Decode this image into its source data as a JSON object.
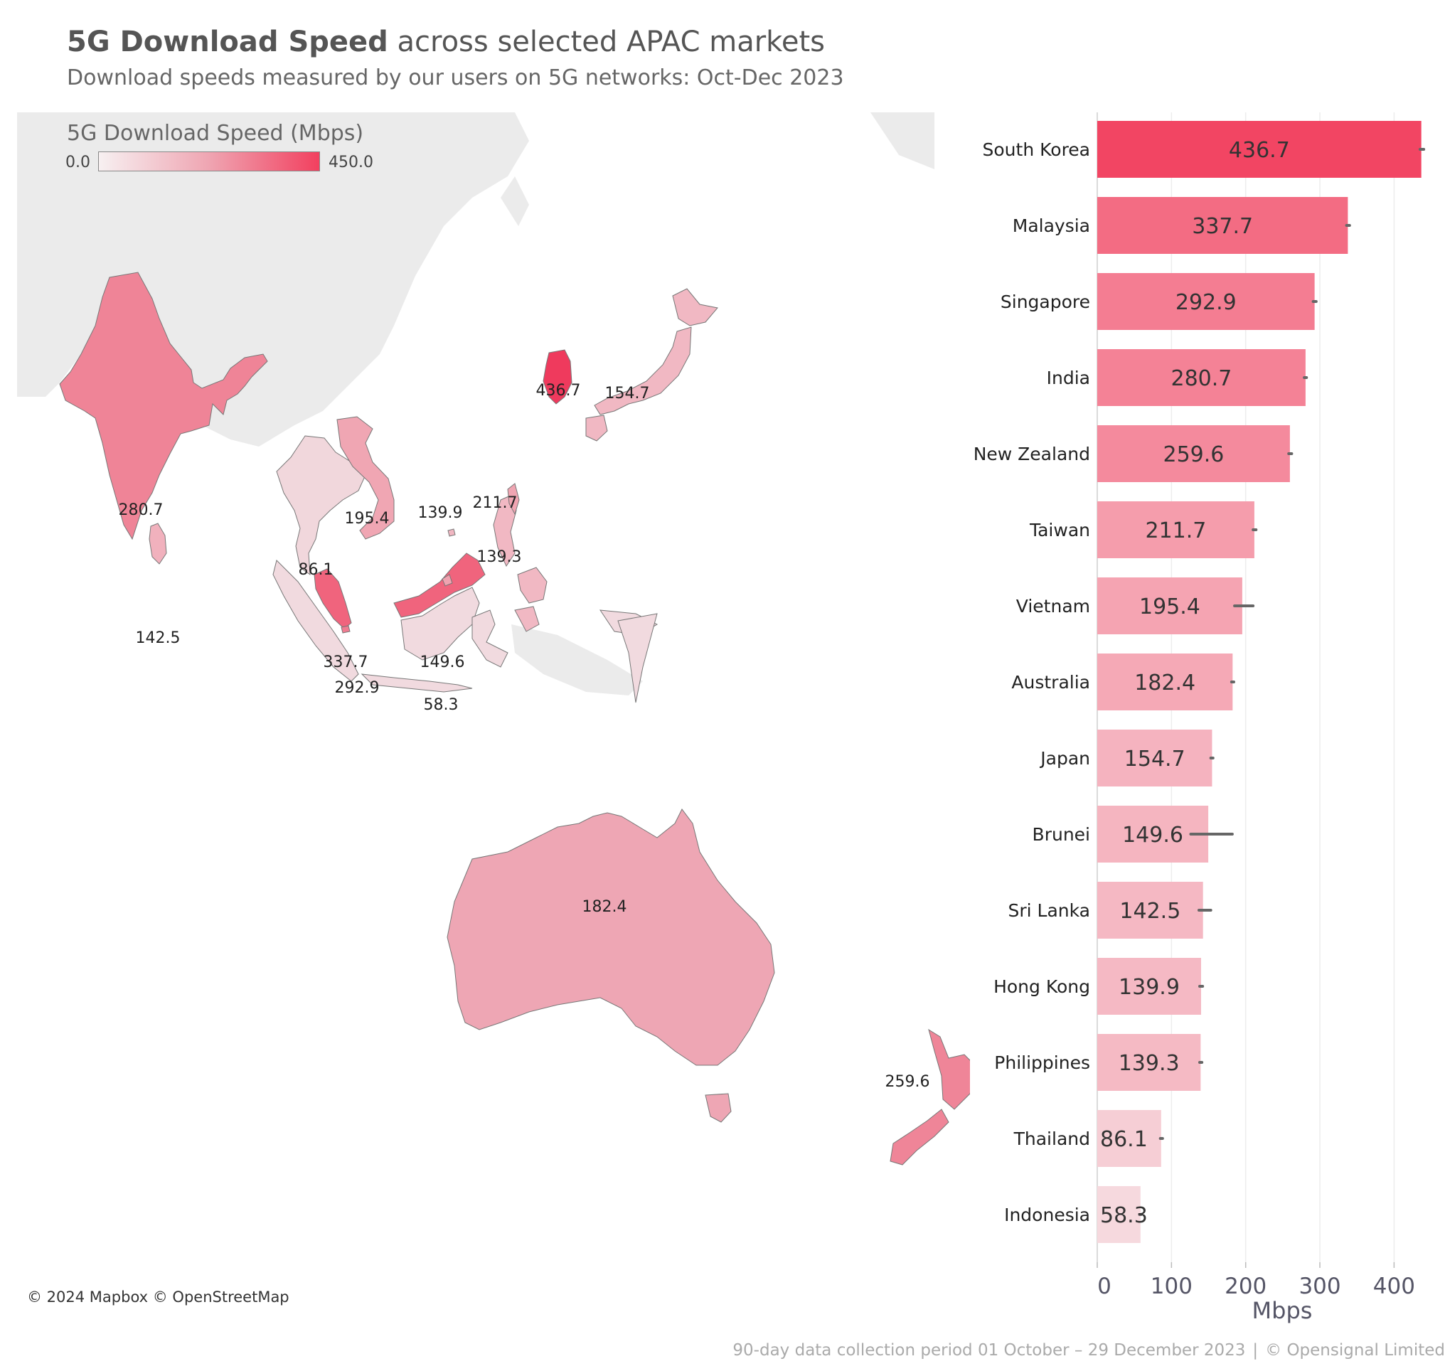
{
  "header": {
    "title_bold": "5G Download Speed",
    "title_rest": "across selected APAC markets",
    "subtitle": "Download speeds measured by our users on 5G networks: Oct-Dec 2023"
  },
  "legend": {
    "title": "5G Download Speed (Mbps)",
    "min_label": "0.0",
    "max_label": "450.0",
    "color_low": "#f7f0f1",
    "color_high": "#f2405f"
  },
  "map": {
    "attribution": "© 2024 Mapbox © OpenStreetMap",
    "labels": [
      {
        "country": "South Korea",
        "text": "436.7"
      },
      {
        "country": "Japan",
        "text": "154.7"
      },
      {
        "country": "India",
        "text": "280.7"
      },
      {
        "country": "Vietnam",
        "text": "195.4"
      },
      {
        "country": "Hong Kong",
        "text": "139.9"
      },
      {
        "country": "Taiwan",
        "text": "211.7"
      },
      {
        "country": "Philippines",
        "text": "139.3"
      },
      {
        "country": "Thailand",
        "text": "86.1"
      },
      {
        "country": "Sri Lanka",
        "text": "142.5"
      },
      {
        "country": "Malaysia",
        "text": "337.7"
      },
      {
        "country": "Brunei",
        "text": "149.6"
      },
      {
        "country": "Singapore",
        "text": "292.9"
      },
      {
        "country": "Indonesia",
        "text": "58.3"
      },
      {
        "country": "Australia",
        "text": "182.4"
      },
      {
        "country": "New Zealand",
        "text": "259.6"
      }
    ]
  },
  "chart_data": {
    "type": "bar",
    "orientation": "horizontal",
    "categories": [
      "South Korea",
      "Malaysia",
      "Singapore",
      "India",
      "New Zealand",
      "Taiwan",
      "Vietnam",
      "Australia",
      "Japan",
      "Brunei",
      "Sri Lanka",
      "Hong Kong",
      "Philippines",
      "Thailand",
      "Indonesia"
    ],
    "values": [
      436.7,
      337.7,
      292.9,
      280.7,
      259.6,
      211.7,
      195.4,
      182.4,
      154.7,
      149.6,
      142.5,
      139.9,
      139.3,
      86.1,
      58.3
    ],
    "labels": [
      "436.7",
      "337.7",
      "292.9",
      "280.7",
      "259.6",
      "211.7",
      "195.4",
      "182.4",
      "154.7",
      "149.6",
      "142.5",
      "139.9",
      "139.3",
      "86.1",
      "58.3"
    ],
    "error_ranges": [
      [
        435,
        440
      ],
      [
        336,
        340
      ],
      [
        291,
        295
      ],
      [
        279,
        282
      ],
      [
        258,
        262
      ],
      [
        210,
        214
      ],
      [
        185,
        210
      ],
      [
        181,
        184
      ],
      [
        153,
        156
      ],
      [
        126,
        182
      ],
      [
        137,
        153
      ],
      [
        138,
        142
      ],
      [
        138,
        141
      ],
      [
        85,
        88
      ],
      [
        57,
        59
      ]
    ],
    "xlabel": "Mbps",
    "ylabel": "",
    "xlim": [
      0,
      460
    ],
    "xticks": [
      0,
      100,
      200,
      300,
      400
    ],
    "grid": true
  },
  "footer": {
    "note": "90-day data collection period 01 October – 29 December 2023",
    "separator": "|",
    "copyright": "© Opensignal Limited"
  }
}
